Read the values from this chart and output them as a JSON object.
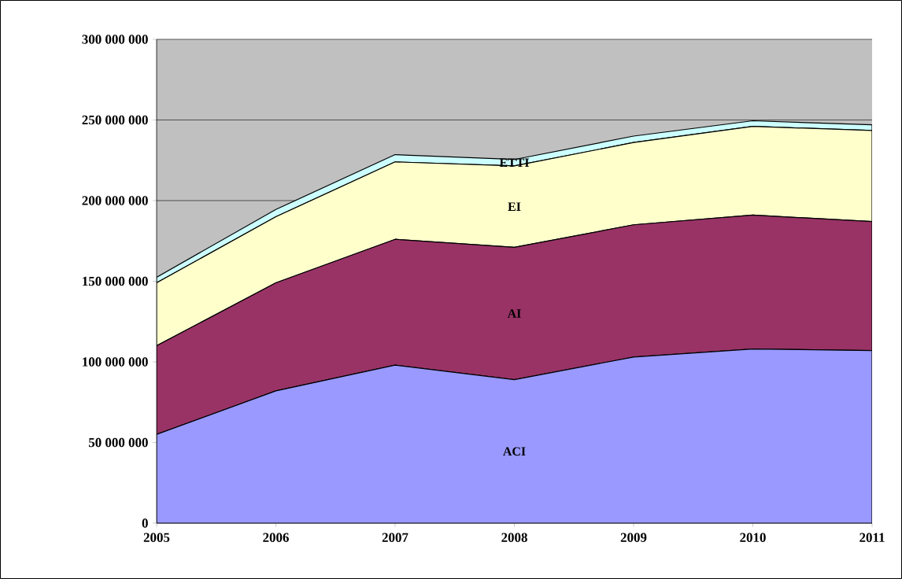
{
  "chart_data": {
    "type": "area",
    "stacked": true,
    "grid": "y",
    "categories": [
      "2005",
      "2006",
      "2007",
      "2008",
      "2009",
      "2010",
      "2011"
    ],
    "series": [
      {
        "name": "ACI",
        "color": "#9999ff",
        "values": [
          55000000,
          82000000,
          98000000,
          89000000,
          103000000,
          108000000,
          107000000
        ]
      },
      {
        "name": "AI",
        "color": "#993366",
        "values": [
          55000000,
          67000000,
          78000000,
          82000000,
          82000000,
          83000000,
          80000000
        ]
      },
      {
        "name": "EI",
        "color": "#ffffcc",
        "values": [
          39000000,
          41000000,
          48000000,
          50500000,
          51000000,
          55000000,
          56500000
        ]
      },
      {
        "name": "ETTI",
        "color": "#ccffff",
        "values": [
          3500000,
          4500000,
          4500000,
          4000000,
          4000000,
          3500000,
          3500000
        ]
      }
    ],
    "ylim": [
      0,
      300000000
    ],
    "yticks": [
      {
        "value": 0,
        "label": "0"
      },
      {
        "value": 50000000,
        "label": "50 000 000"
      },
      {
        "value": 100000000,
        "label": "100 000 000"
      },
      {
        "value": 150000000,
        "label": "150 000 000"
      },
      {
        "value": 200000000,
        "label": "200 000 000"
      },
      {
        "value": 250000000,
        "label": "250 000 000"
      },
      {
        "value": 300000000,
        "label": "300 000 000"
      }
    ]
  }
}
